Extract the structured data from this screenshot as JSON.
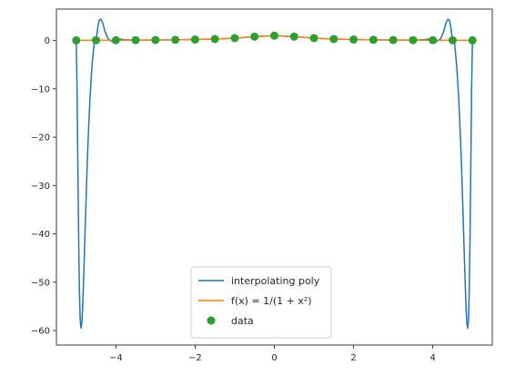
{
  "chart_data": {
    "type": "line",
    "title": "",
    "xlabel": "",
    "ylabel": "",
    "xlim": [
      -5.5,
      5.5
    ],
    "ylim": [
      -63,
      6.5
    ],
    "x_ticks": [
      -4,
      -2,
      0,
      2,
      4
    ],
    "y_ticks": [
      0,
      -10,
      -20,
      -30,
      -40,
      -50,
      -60
    ],
    "grid": false,
    "legend_position": "bottom-center",
    "colors": {
      "poly": "#1f77b4",
      "f": "#ff7f0e",
      "data": "#2ca02c",
      "axes": "#262626"
    },
    "legend": [
      {
        "key": "poly",
        "label": "interpolating poly",
        "marker": "line",
        "color": "#1f77b4"
      },
      {
        "key": "f",
        "label": "f(x) = 1/(1 + x²)",
        "marker": "line",
        "color": "#ff7f0e"
      },
      {
        "key": "data",
        "label": "data",
        "marker": "dot",
        "color": "#2ca02c"
      }
    ],
    "series": [
      {
        "name": "interpolating poly",
        "kind": "line",
        "x": [
          -5.0,
          -4.98,
          -4.96,
          -4.94,
          -4.92,
          -4.9,
          -4.88,
          -4.86,
          -4.84,
          -4.82,
          -4.8,
          -4.78,
          -4.76,
          -4.74,
          -4.72,
          -4.7,
          -4.65,
          -4.6,
          -4.55,
          -4.5,
          -4.45,
          -4.42,
          -4.38,
          -4.33,
          -4.28,
          -4.2,
          -4.1,
          -4.0,
          -3.9,
          -3.75,
          -3.5,
          -3.0,
          -2.5,
          -2.0,
          -1.5,
          -1.0,
          -0.5,
          0.0,
          0.5,
          1.0,
          1.5,
          2.0,
          2.5,
          3.0,
          3.5,
          3.75,
          3.9,
          4.0,
          4.1,
          4.2,
          4.28,
          4.33,
          4.38,
          4.42,
          4.45,
          4.5,
          4.55,
          4.6,
          4.65,
          4.7,
          4.72,
          4.74,
          4.76,
          4.78,
          4.8,
          4.82,
          4.84,
          4.86,
          4.88,
          4.9,
          4.92,
          4.94,
          4.96,
          4.98,
          5.0
        ],
        "y": [
          0.04,
          -9.5,
          -25.0,
          -40.0,
          -51.5,
          -57.8,
          -59.5,
          -58.5,
          -55.5,
          -51.0,
          -46.0,
          -40.5,
          -35.2,
          -30.0,
          -25.0,
          -20.5,
          -11.5,
          -5.0,
          -0.7,
          0.05,
          3.0,
          4.2,
          4.4,
          3.6,
          2.0,
          0.4,
          -0.2,
          0.06,
          0.3,
          0.15,
          0.08,
          0.1,
          0.14,
          0.2,
          0.31,
          0.5,
          0.8,
          1.0,
          0.8,
          0.5,
          0.31,
          0.2,
          0.14,
          0.1,
          0.08,
          0.15,
          0.3,
          0.06,
          -0.2,
          0.4,
          2.0,
          3.6,
          4.4,
          4.2,
          3.0,
          0.05,
          -0.7,
          -5.0,
          -11.5,
          -20.5,
          -25.0,
          -30.0,
          -35.2,
          -40.5,
          -46.0,
          -51.0,
          -55.5,
          -58.5,
          -59.5,
          -57.8,
          -51.5,
          -40.0,
          -25.0,
          -9.5,
          0.04
        ]
      },
      {
        "name": "f(x) = 1/(1 + x²)",
        "kind": "line",
        "x": [
          -5.0,
          -4.5,
          -4.0,
          -3.5,
          -3.0,
          -2.5,
          -2.0,
          -1.5,
          -1.0,
          -0.5,
          0.0,
          0.5,
          1.0,
          1.5,
          2.0,
          2.5,
          3.0,
          3.5,
          4.0,
          4.5,
          5.0
        ],
        "y": [
          0.038,
          0.047,
          0.059,
          0.075,
          0.1,
          0.138,
          0.2,
          0.308,
          0.5,
          0.8,
          1.0,
          0.8,
          0.5,
          0.308,
          0.2,
          0.138,
          0.1,
          0.075,
          0.059,
          0.047,
          0.038
        ]
      },
      {
        "name": "data",
        "kind": "scatter",
        "x": [
          -5.0,
          -4.5,
          -4.0,
          -3.5,
          -3.0,
          -2.5,
          -2.0,
          -1.5,
          -1.0,
          -0.5,
          0.0,
          0.5,
          1.0,
          1.5,
          2.0,
          2.5,
          3.0,
          3.5,
          4.0,
          4.5,
          5.0
        ],
        "y": [
          0.038,
          0.047,
          0.059,
          0.075,
          0.1,
          0.138,
          0.2,
          0.308,
          0.5,
          0.8,
          1.0,
          0.8,
          0.5,
          0.308,
          0.2,
          0.138,
          0.1,
          0.075,
          0.059,
          0.047,
          0.038
        ]
      }
    ]
  }
}
